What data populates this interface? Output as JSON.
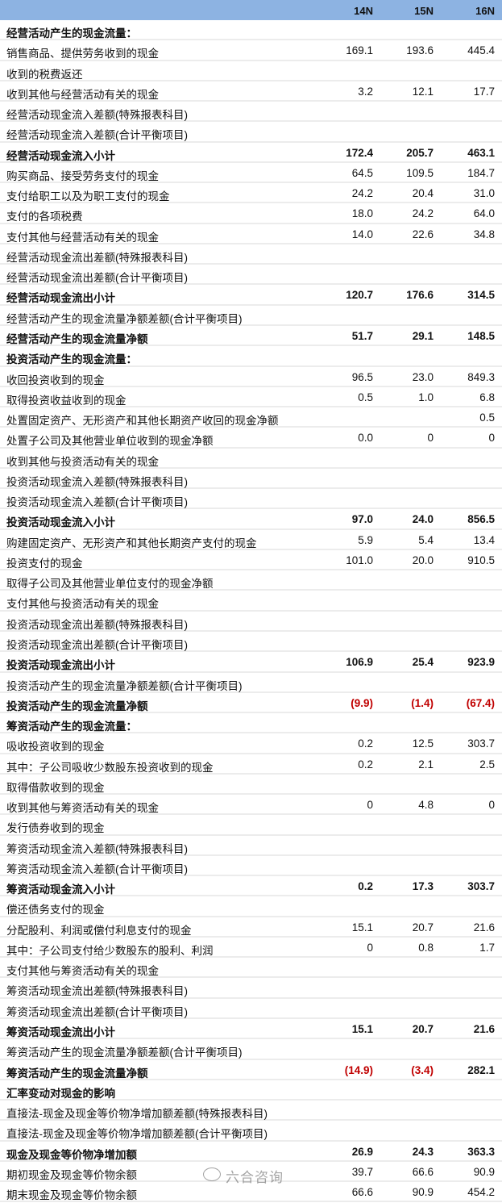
{
  "header": {
    "columns": [
      "14N",
      "15N",
      "16N"
    ]
  },
  "colors": {
    "header_bg": "#8db3e2",
    "negative": "#c00000",
    "row_divider": "#ececec"
  },
  "rows": [
    {
      "label": "经营活动产生的现金流量：",
      "values": [
        "",
        "",
        ""
      ],
      "bold": true
    },
    {
      "label": "销售商品、提供劳务收到的现金",
      "values": [
        "169.1",
        "193.6",
        "445.4"
      ]
    },
    {
      "label": "收到的税费返还",
      "values": [
        "",
        "",
        ""
      ]
    },
    {
      "label": "收到其他与经营活动有关的现金",
      "values": [
        "3.2",
        "12.1",
        "17.7"
      ]
    },
    {
      "label": "经营活动现金流入差额(特殊报表科目)",
      "values": [
        "",
        "",
        ""
      ]
    },
    {
      "label": "经营活动现金流入差额(合计平衡项目)",
      "values": [
        "",
        "",
        ""
      ]
    },
    {
      "label": "经营活动现金流入小计",
      "values": [
        "172.4",
        "205.7",
        "463.1"
      ],
      "bold": true
    },
    {
      "label": "购买商品、接受劳务支付的现金",
      "values": [
        "64.5",
        "109.5",
        "184.7"
      ]
    },
    {
      "label": "支付给职工以及为职工支付的现金",
      "values": [
        "24.2",
        "20.4",
        "31.0"
      ]
    },
    {
      "label": "支付的各项税费",
      "values": [
        "18.0",
        "24.2",
        "64.0"
      ]
    },
    {
      "label": "支付其他与经营活动有关的现金",
      "values": [
        "14.0",
        "22.6",
        "34.8"
      ]
    },
    {
      "label": "经营活动现金流出差额(特殊报表科目)",
      "values": [
        "",
        "",
        ""
      ]
    },
    {
      "label": "经营活动现金流出差额(合计平衡项目)",
      "values": [
        "",
        "",
        ""
      ]
    },
    {
      "label": "经营活动现金流出小计",
      "values": [
        "120.7",
        "176.6",
        "314.5"
      ],
      "bold": true
    },
    {
      "label": "经营活动产生的现金流量净额差额(合计平衡项目)",
      "values": [
        "",
        "",
        ""
      ]
    },
    {
      "label": "经营活动产生的现金流量净额",
      "values": [
        "51.7",
        "29.1",
        "148.5"
      ],
      "bold": true
    },
    {
      "label": "投资活动产生的现金流量：",
      "values": [
        "",
        "",
        ""
      ],
      "bold": true
    },
    {
      "label": "收回投资收到的现金",
      "values": [
        "96.5",
        "23.0",
        "849.3"
      ]
    },
    {
      "label": "取得投资收益收到的现金",
      "values": [
        "0.5",
        "1.0",
        "6.8"
      ]
    },
    {
      "label": "处置固定资产、无形资产和其他长期资产收回的现金净额",
      "values": [
        "",
        "",
        "0.5"
      ]
    },
    {
      "label": "处置子公司及其他营业单位收到的现金净额",
      "values": [
        "0.0",
        "0",
        "0"
      ]
    },
    {
      "label": "收到其他与投资活动有关的现金",
      "values": [
        "",
        "",
        ""
      ]
    },
    {
      "label": "投资活动现金流入差额(特殊报表科目)",
      "values": [
        "",
        "",
        ""
      ]
    },
    {
      "label": "投资活动现金流入差额(合计平衡项目)",
      "values": [
        "",
        "",
        ""
      ]
    },
    {
      "label": "投资活动现金流入小计",
      "values": [
        "97.0",
        "24.0",
        "856.5"
      ],
      "bold": true
    },
    {
      "label": "购建固定资产、无形资产和其他长期资产支付的现金",
      "values": [
        "5.9",
        "5.4",
        "13.4"
      ]
    },
    {
      "label": "投资支付的现金",
      "values": [
        "101.0",
        "20.0",
        "910.5"
      ]
    },
    {
      "label": "取得子公司及其他营业单位支付的现金净额",
      "values": [
        "",
        "",
        ""
      ]
    },
    {
      "label": "支付其他与投资活动有关的现金",
      "values": [
        "",
        "",
        ""
      ]
    },
    {
      "label": "投资活动现金流出差额(特殊报表科目)",
      "values": [
        "",
        "",
        ""
      ]
    },
    {
      "label": "投资活动现金流出差额(合计平衡项目)",
      "values": [
        "",
        "",
        ""
      ]
    },
    {
      "label": "投资活动现金流出小计",
      "values": [
        "106.9",
        "25.4",
        "923.9"
      ],
      "bold": true
    },
    {
      "label": "投资活动产生的现金流量净额差额(合计平衡项目)",
      "values": [
        "",
        "",
        ""
      ]
    },
    {
      "label": "投资活动产生的现金流量净额",
      "values": [
        "(9.9)",
        "(1.4)",
        "(67.4)"
      ],
      "bold": true,
      "negative": [
        true,
        true,
        true
      ]
    },
    {
      "label": "筹资活动产生的现金流量：",
      "values": [
        "",
        "",
        ""
      ],
      "bold": true
    },
    {
      "label": "吸收投资收到的现金",
      "values": [
        "0.2",
        "12.5",
        "303.7"
      ]
    },
    {
      "label": "其中：子公司吸收少数股东投资收到的现金",
      "values": [
        "0.2",
        "2.1",
        "2.5"
      ]
    },
    {
      "label": "取得借款收到的现金",
      "values": [
        "",
        "",
        ""
      ]
    },
    {
      "label": "收到其他与筹资活动有关的现金",
      "values": [
        "0",
        "4.8",
        "0"
      ]
    },
    {
      "label": "发行债券收到的现金",
      "values": [
        "",
        "",
        ""
      ]
    },
    {
      "label": "筹资活动现金流入差额(特殊报表科目)",
      "values": [
        "",
        "",
        ""
      ]
    },
    {
      "label": "筹资活动现金流入差额(合计平衡项目)",
      "values": [
        "",
        "",
        ""
      ]
    },
    {
      "label": "筹资活动现金流入小计",
      "values": [
        "0.2",
        "17.3",
        "303.7"
      ],
      "bold": true
    },
    {
      "label": "偿还债务支付的现金",
      "values": [
        "",
        "",
        ""
      ]
    },
    {
      "label": "分配股利、利润或偿付利息支付的现金",
      "values": [
        "15.1",
        "20.7",
        "21.6"
      ]
    },
    {
      "label": "其中：子公司支付给少数股东的股利、利润",
      "values": [
        "0",
        "0.8",
        "1.7"
      ]
    },
    {
      "label": "支付其他与筹资活动有关的现金",
      "values": [
        "",
        "",
        ""
      ]
    },
    {
      "label": "筹资活动现金流出差额(特殊报表科目)",
      "values": [
        "",
        "",
        ""
      ]
    },
    {
      "label": "筹资活动现金流出差额(合计平衡项目)",
      "values": [
        "",
        "",
        ""
      ]
    },
    {
      "label": "筹资活动现金流出小计",
      "values": [
        "15.1",
        "20.7",
        "21.6"
      ],
      "bold": true
    },
    {
      "label": "筹资活动产生的现金流量净额差额(合计平衡项目)",
      "values": [
        "",
        "",
        ""
      ]
    },
    {
      "label": "筹资活动产生的现金流量净额",
      "values": [
        "(14.9)",
        "(3.4)",
        "282.1"
      ],
      "bold": true,
      "negative": [
        true,
        true,
        false
      ]
    },
    {
      "label": "汇率变动对现金的影响",
      "values": [
        "",
        "",
        ""
      ],
      "bold": true
    },
    {
      "label": "直接法-现金及现金等价物净增加额差额(特殊报表科目)",
      "values": [
        "",
        "",
        ""
      ]
    },
    {
      "label": "直接法-现金及现金等价物净增加额差额(合计平衡项目)",
      "values": [
        "",
        "",
        ""
      ]
    },
    {
      "label": "现金及现金等价物净增加额",
      "values": [
        "26.9",
        "24.3",
        "363.3"
      ],
      "bold": true
    },
    {
      "label": "期初现金及现金等价物余额",
      "values": [
        "39.7",
        "66.6",
        "90.9"
      ]
    },
    {
      "label": "期末现金及现金等价物余额",
      "values": [
        "66.6",
        "90.9",
        "454.2"
      ]
    }
  ],
  "watermark": {
    "text": "六合咨询",
    "icon": "wechat-icon"
  }
}
